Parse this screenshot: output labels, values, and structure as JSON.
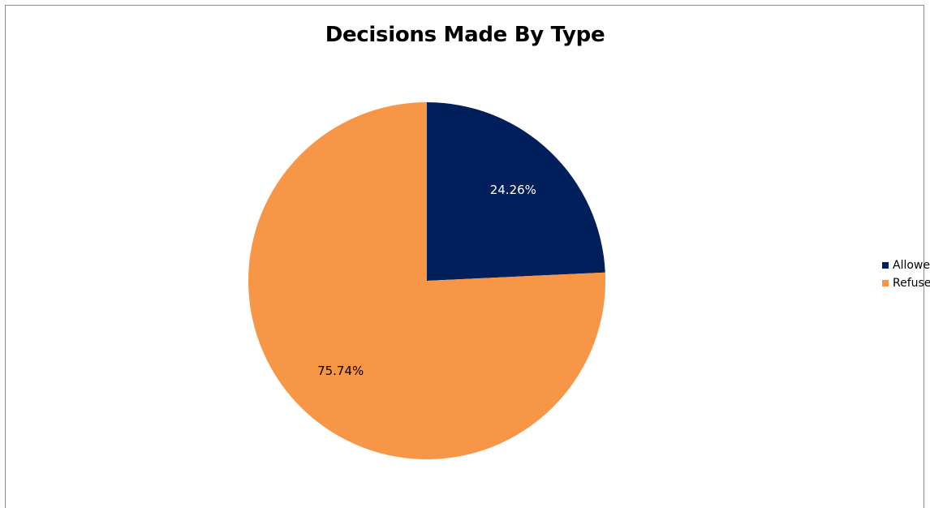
{
  "chart_data": {
    "type": "pie",
    "title": "Decisions Made By Type",
    "categories": [
      "Allowed",
      "Refused"
    ],
    "values": [
      24.26,
      75.74
    ],
    "data_labels": [
      "24.26%",
      "75.74%"
    ],
    "colors": [
      "#001f5b",
      "#f79646"
    ],
    "label_colors": [
      "#ffffff",
      "#000000"
    ],
    "legend_position": "right"
  }
}
